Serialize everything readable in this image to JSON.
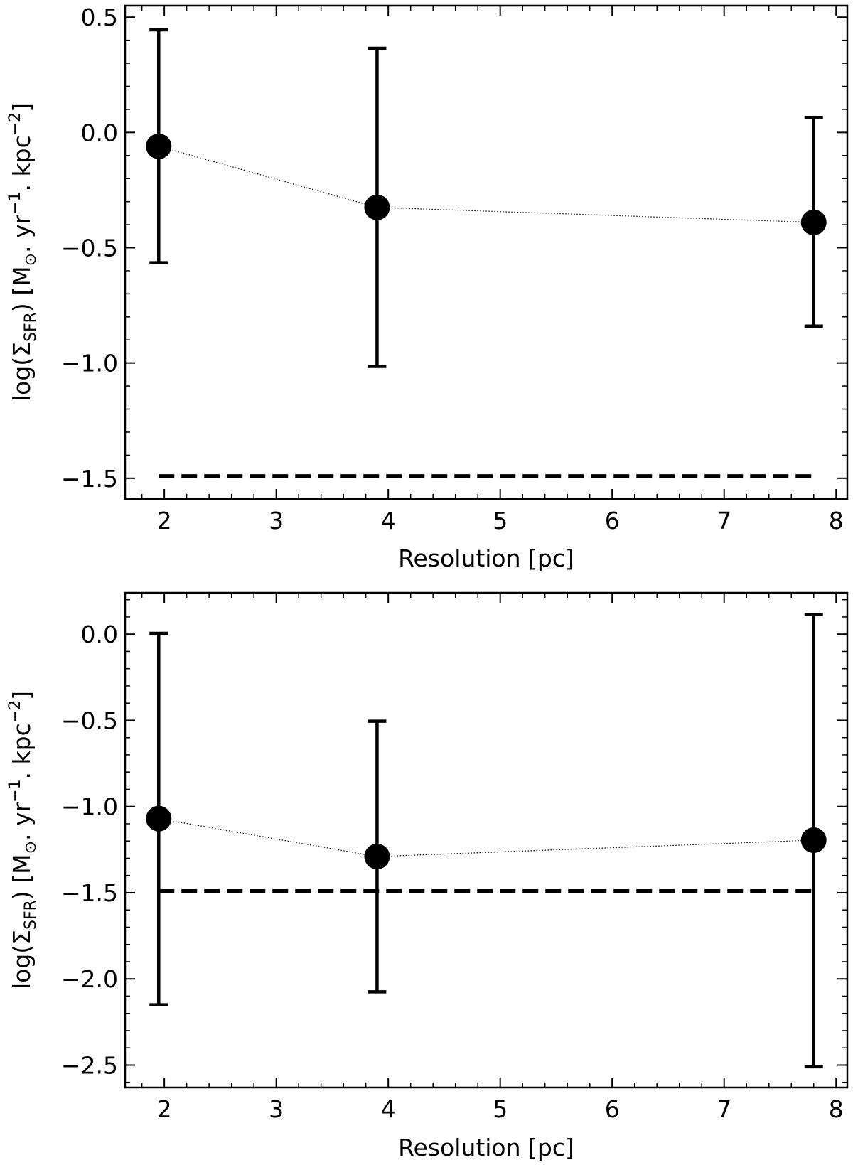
{
  "chart_data": [
    {
      "type": "scatter",
      "panel": "top",
      "xlabel": "Resolution [pc]",
      "ylabel": {
        "prefix": "log(Σ",
        "subscript": "SFR",
        "middle": ") [M",
        "sun_subscript": "⊙",
        "unit1": ". yr",
        "exp1": "−1",
        "unit2": ". kpc",
        "exp2": "−2",
        "suffix": "]"
      },
      "xlim": [
        1.65,
        8.1
      ],
      "ylim": [
        -1.59,
        0.55
      ],
      "xticks": [
        2,
        3,
        4,
        5,
        6,
        7,
        8
      ],
      "xtick_labels": [
        "2",
        "3",
        "4",
        "5",
        "6",
        "7",
        "8"
      ],
      "yticks": [
        0.5,
        0.0,
        -0.5,
        -1.0,
        -1.5
      ],
      "ytick_labels": [
        "0.5",
        "0.0",
        "−0.5",
        "−1.0",
        "−1.5"
      ],
      "series": [
        {
          "name": "data",
          "x": [
            1.95,
            3.9,
            7.8
          ],
          "y": [
            -0.06,
            -0.325,
            -0.39
          ],
          "err_low": [
            -0.565,
            -1.015,
            -0.84
          ],
          "err_high": [
            0.445,
            0.365,
            0.065
          ],
          "connector": "dotted"
        }
      ],
      "reference_line": {
        "y": -1.49,
        "x_start": 1.95,
        "x_end": 7.8,
        "style": "dashed"
      }
    },
    {
      "type": "scatter",
      "panel": "bottom",
      "xlabel": "Resolution [pc]",
      "ylabel": {
        "prefix": "log(Σ",
        "subscript": "SFR",
        "middle": ") [M",
        "sun_subscript": "⊙",
        "unit1": ". yr",
        "exp1": "−1",
        "unit2": ". kpc",
        "exp2": "−2",
        "suffix": "]"
      },
      "xlim": [
        1.65,
        8.1
      ],
      "ylim": [
        -2.63,
        0.24
      ],
      "xticks": [
        2,
        3,
        4,
        5,
        6,
        7,
        8
      ],
      "xtick_labels": [
        "2",
        "3",
        "4",
        "5",
        "6",
        "7",
        "8"
      ],
      "yticks": [
        0.0,
        -0.5,
        -1.0,
        -1.5,
        -2.0,
        -2.5
      ],
      "ytick_labels": [
        "0.0",
        "−0.5",
        "−1.0",
        "−1.5",
        "−2.0",
        "−2.5"
      ],
      "series": [
        {
          "name": "data",
          "x": [
            1.95,
            3.9,
            7.8
          ],
          "y": [
            -1.07,
            -1.29,
            -1.195
          ],
          "err_low": [
            -2.15,
            -2.075,
            -2.51
          ],
          "err_high": [
            0.005,
            -0.505,
            0.115
          ],
          "connector": "dotted"
        }
      ],
      "reference_line": {
        "y": -1.49,
        "x_start": 1.95,
        "x_end": 7.8,
        "style": "dashed"
      }
    }
  ]
}
